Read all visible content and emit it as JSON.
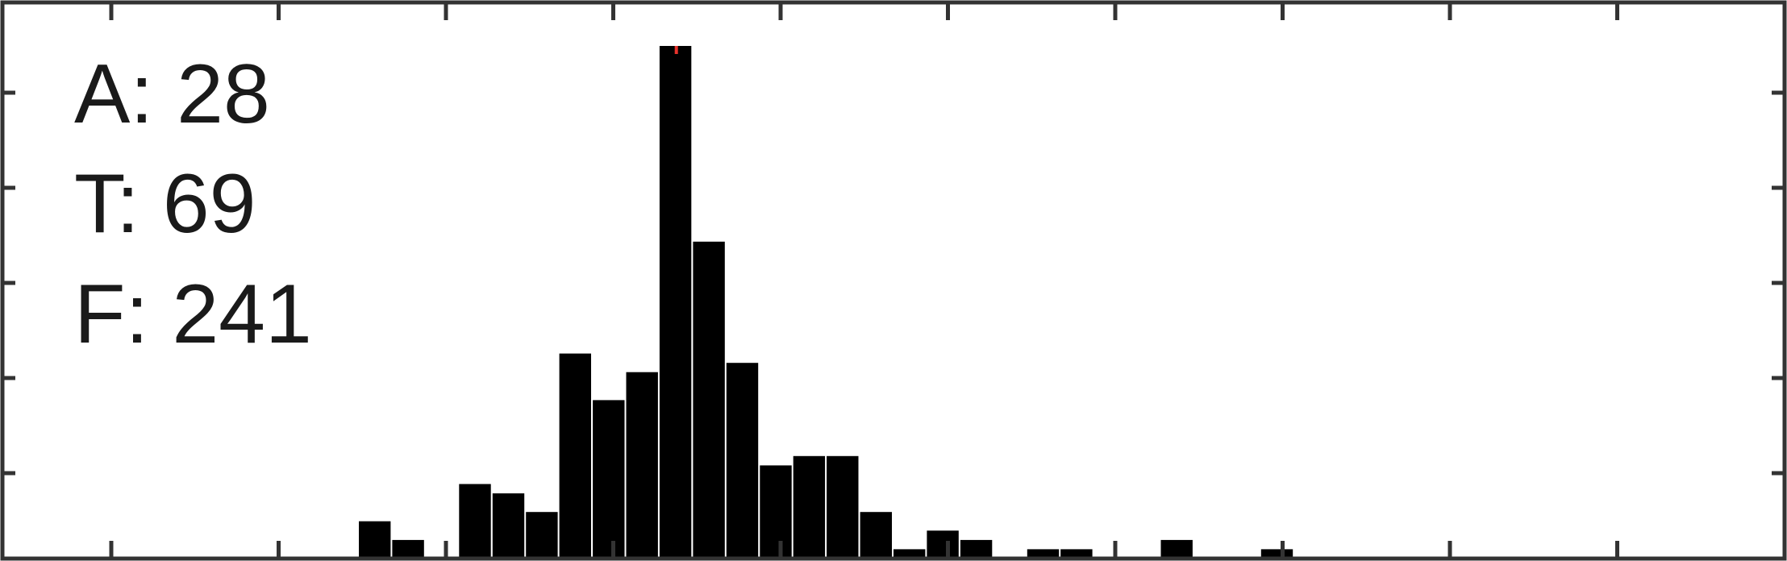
{
  "chart_data": {
    "type": "bar",
    "title": "",
    "xlabel": "",
    "ylabel": "",
    "xlim": [
      0,
      1600
    ],
    "ylim": [
      0,
      55
    ],
    "x_tick_count": 11,
    "y_tick_count": 6,
    "grid": false,
    "legend": "none",
    "bar_color": "#000000",
    "marker_color": "#e8322b",
    "annotations": [
      "A: 28",
      "T: 69",
      "F: 241"
    ],
    "series": [
      {
        "x_left": [
          320,
          350,
          410,
          440,
          470,
          500,
          530,
          560,
          590,
          620,
          650,
          680,
          710,
          740,
          770,
          800,
          830,
          860,
          920,
          950,
          1040,
          1130
        ],
        "x_right": [
          350,
          380,
          440,
          470,
          500,
          530,
          560,
          590,
          620,
          650,
          680,
          710,
          740,
          770,
          800,
          830,
          860,
          890,
          950,
          980,
          1070,
          1160
        ],
        "values": [
          4,
          2,
          8,
          7,
          5,
          22,
          17,
          20,
          55,
          34,
          21,
          10,
          11,
          11,
          5,
          1,
          3,
          2,
          1,
          1,
          2,
          1
        ]
      }
    ],
    "peak_marker_x": 605
  }
}
